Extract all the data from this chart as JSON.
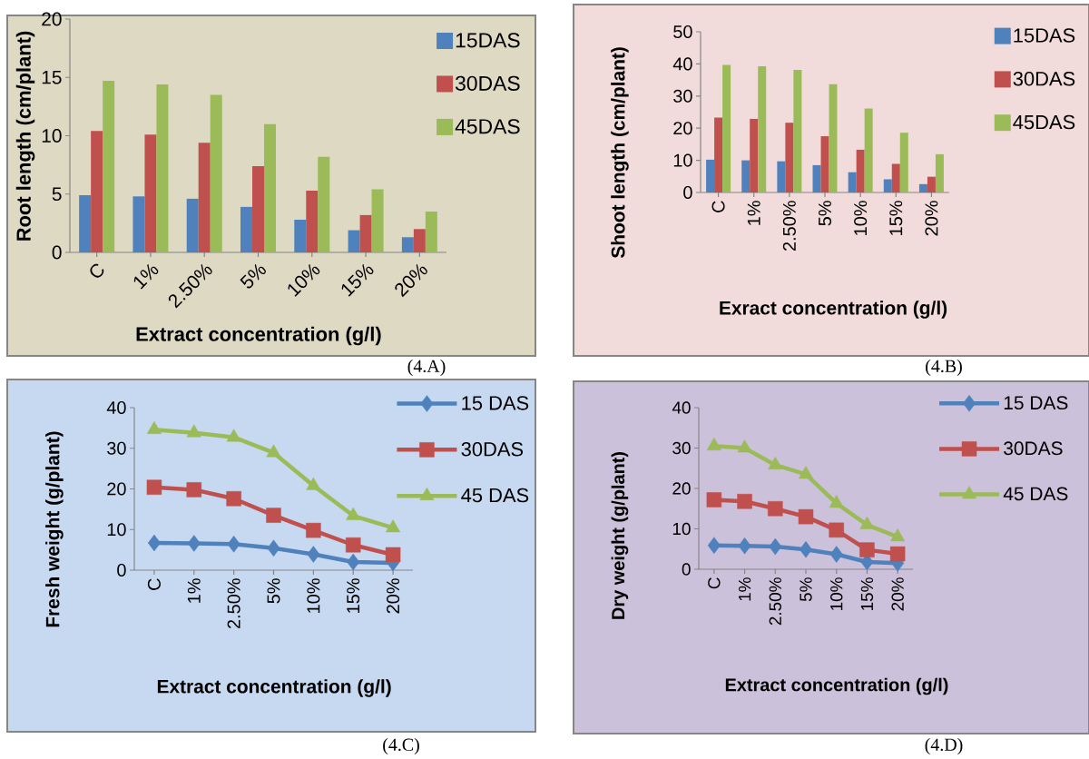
{
  "chart_data": [
    {
      "type": "bar",
      "xlabel": "Extract concentration (g/l)",
      "ylabel": "Root length (cm/plant)",
      "categories": [
        "C",
        "1%",
        "2.50%",
        "5%",
        "10%",
        "15%",
        "20%"
      ],
      "ylim": [
        0,
        20
      ],
      "yticks": [
        0,
        5,
        10,
        15,
        20
      ],
      "legend": "top right",
      "annotations": [
        "(4.A)"
      ],
      "series": [
        {
          "name": "15DAS",
          "color": "#4f81bd",
          "values": [
            4.9,
            4.8,
            4.6,
            3.9,
            2.8,
            1.9,
            1.3
          ]
        },
        {
          "name": "30DAS",
          "color": "#c0504d",
          "values": [
            10.4,
            10.1,
            9.4,
            7.4,
            5.3,
            3.2,
            2.0
          ]
        },
        {
          "name": "45DAS",
          "color": "#9bbb59",
          "values": [
            14.7,
            14.4,
            13.5,
            11.0,
            8.2,
            5.4,
            3.5
          ]
        }
      ]
    },
    {
      "type": "bar",
      "xlabel": "Exract concentration (g/l)",
      "ylabel": "Shoot length (cm/plant)",
      "categories": [
        "C",
        "1%",
        "2.50%",
        "5%",
        "10%",
        "15%",
        "20%"
      ],
      "ylim": [
        0,
        50
      ],
      "yticks": [
        0,
        10,
        20,
        30,
        40,
        50
      ],
      "legend": "top right",
      "annotations": [
        "(4.B)"
      ],
      "series": [
        {
          "name": "15DAS",
          "color": "#4f81bd",
          "values": [
            10.2,
            10.0,
            9.7,
            8.5,
            6.3,
            4.1,
            2.6
          ]
        },
        {
          "name": "30DAS",
          "color": "#c0504d",
          "values": [
            23.3,
            22.9,
            21.7,
            17.5,
            13.3,
            8.9,
            4.9
          ]
        },
        {
          "name": "45DAS",
          "color": "#9bbb59",
          "values": [
            39.7,
            39.3,
            38.1,
            33.7,
            26.1,
            18.6,
            11.9
          ]
        }
      ]
    },
    {
      "type": "line",
      "xlabel": "Extract concentration (g/l)",
      "ylabel": "Fresh weight (g/plant)",
      "categories": [
        "C",
        "1%",
        "2.50%",
        "5%",
        "10%",
        "15%",
        "20%"
      ],
      "ylim": [
        0,
        40
      ],
      "yticks": [
        0,
        10,
        20,
        30,
        40
      ],
      "legend": "top right",
      "line_style": "solid",
      "annotations": [
        "(4.C)"
      ],
      "series": [
        {
          "name": "15 DAS",
          "color": "#4f81bd",
          "marker": "diamond",
          "values": [
            6.7,
            6.6,
            6.4,
            5.4,
            3.9,
            2.0,
            1.8
          ]
        },
        {
          "name": "30DAS",
          "color": "#c0504d",
          "marker": "square",
          "values": [
            20.4,
            19.8,
            17.6,
            13.5,
            9.8,
            6.2,
            3.8
          ]
        },
        {
          "name": "45 DAS",
          "color": "#9bbb59",
          "marker": "triangle",
          "values": [
            34.6,
            33.8,
            32.7,
            28.9,
            20.8,
            13.4,
            10.4
          ]
        }
      ]
    },
    {
      "type": "line",
      "xlabel": "Extract concentration (g/l)",
      "ylabel": "Dry weight (g/plant)",
      "categories": [
        "C",
        "1%",
        "2.50%",
        "5%",
        "10%",
        "15%",
        "20%"
      ],
      "ylim": [
        0,
        40
      ],
      "yticks": [
        0,
        10,
        20,
        30,
        40
      ],
      "legend": "top right",
      "line_style": "solid",
      "annotations": [
        "(4.D)"
      ],
      "series": [
        {
          "name": "15 DAS",
          "color": "#4f81bd",
          "marker": "diamond",
          "values": [
            5.9,
            5.8,
            5.6,
            4.9,
            3.7,
            1.8,
            1.5
          ]
        },
        {
          "name": "30DAS",
          "color": "#c0504d",
          "marker": "square",
          "values": [
            17.2,
            16.8,
            15.0,
            13.0,
            9.7,
            4.8,
            3.8
          ]
        },
        {
          "name": "45 DAS",
          "color": "#9bbb59",
          "marker": "triangle",
          "values": [
            30.5,
            30.0,
            25.8,
            23.5,
            16.3,
            11.0,
            8.0
          ]
        }
      ]
    }
  ]
}
